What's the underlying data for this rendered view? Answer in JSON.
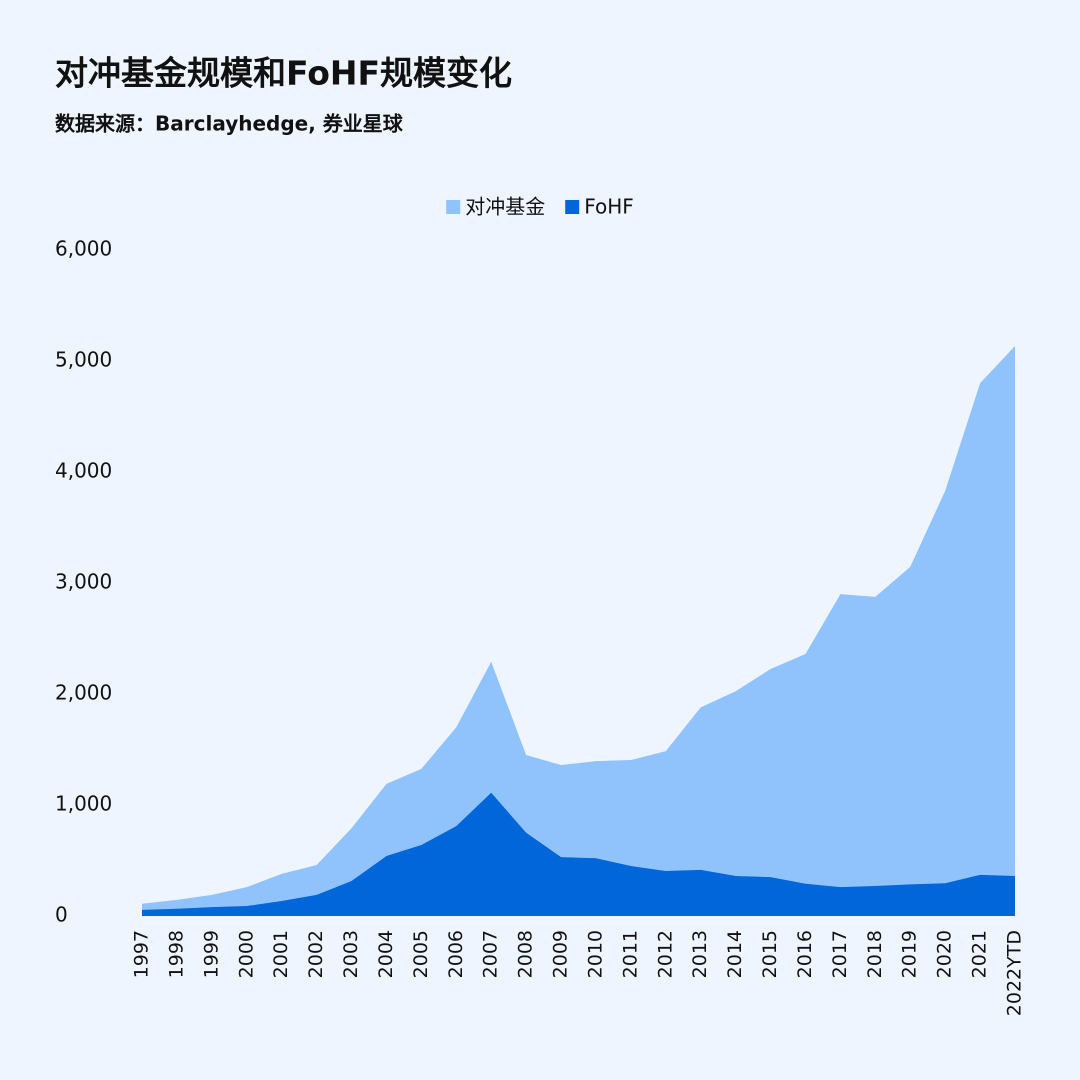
{
  "chart_data": {
    "type": "area",
    "title": "对冲基金规模和FoHF规模变化",
    "subtitle": "数据来源：Barclayhedge, 券业星球",
    "categories": [
      "1997",
      "1998",
      "1999",
      "2000",
      "2001",
      "2002",
      "2003",
      "2004",
      "2005",
      "2006",
      "2007",
      "2008",
      "2009",
      "2010",
      "2011",
      "2012",
      "2013",
      "2014",
      "2015",
      "2016",
      "2017",
      "2018",
      "2019",
      "2020",
      "2021",
      "2022YTD"
    ],
    "series": [
      {
        "name": "对冲基金",
        "color": "#90c3fc",
        "values": [
          110,
          145,
          190,
          260,
          380,
          460,
          790,
          1190,
          1325,
          1700,
          2290,
          1450,
          1360,
          1395,
          1405,
          1485,
          1880,
          2025,
          2225,
          2360,
          2900,
          2875,
          3145,
          3830,
          4800,
          5135
        ]
      },
      {
        "name": "FoHF",
        "color": "#0066d9",
        "values": [
          55,
          65,
          80,
          90,
          135,
          190,
          315,
          540,
          640,
          810,
          1110,
          750,
          530,
          520,
          450,
          405,
          415,
          360,
          350,
          290,
          260,
          270,
          285,
          295,
          370,
          360
        ]
      }
    ],
    "stacked": false,
    "ylim": [
      0,
      6000
    ],
    "yticks": [
      0,
      {
        "value": 1000,
        "label": "1,000"
      },
      {
        "value": 2000,
        "label": "2,000"
      },
      {
        "value": 3000,
        "label": "3,000"
      },
      {
        "value": 4000,
        "label": "4,000"
      },
      {
        "value": 5000,
        "label": "5,000"
      },
      {
        "value": 6000,
        "label": "6,000"
      }
    ],
    "grid": false,
    "legend": "top"
  }
}
